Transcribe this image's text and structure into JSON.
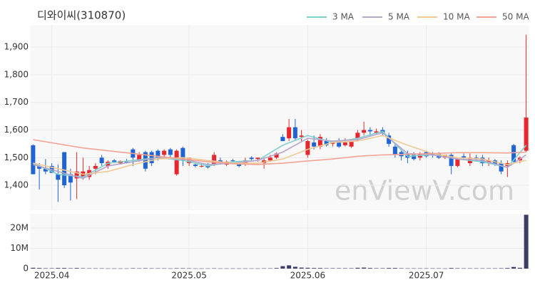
{
  "chart_data": {
    "type": "candlestick",
    "title": "디와이씨(310870)",
    "watermark": "enViewV.com",
    "up_color": "#e8262d",
    "down_color": "#1f63d6",
    "volume_color": "#3c3c66",
    "xlim": [
      -0.5,
      79.5
    ],
    "xticks": [
      {
        "value": 3,
        "label": "2025.04"
      },
      {
        "value": 25,
        "label": "2025.05"
      },
      {
        "value": 44,
        "label": "2025.06"
      },
      {
        "value": 63,
        "label": "2025.07"
      }
    ],
    "ylim": [
      1310,
      1980
    ],
    "yticks": [
      {
        "value": 1400,
        "label": "1,400"
      },
      {
        "value": 1500,
        "label": "1,500"
      },
      {
        "value": 1600,
        "label": "1,600"
      },
      {
        "value": 1700,
        "label": "1,700"
      },
      {
        "value": 1800,
        "label": "1,800"
      },
      {
        "value": 1900,
        "label": "1,900"
      }
    ],
    "volume_ylim": [
      0,
      27000000
    ],
    "volume_yticks": [
      0,
      {
        "value": 10000000,
        "label": "10M"
      },
      {
        "value": 20000000,
        "label": "20M"
      }
    ],
    "grid": true,
    "open": [
      1545,
      1470,
      1460,
      1470,
      1440,
      1520,
      1440,
      1425,
      1430,
      1430,
      1460,
      1500,
      1470,
      1490,
      1480,
      1485,
      1530,
      1490,
      1520,
      1520,
      1525,
      1510,
      1530,
      1440,
      1535,
      1480,
      1475,
      1470,
      1470,
      1475,
      1490,
      1475,
      1490,
      1475,
      1480,
      1500,
      1495,
      1480,
      1490,
      1500,
      1575,
      1570,
      1610,
      1575,
      1510,
      1555,
      1540,
      1560,
      1550,
      1560,
      1545,
      1540,
      1570,
      1590,
      1600,
      1590,
      1600,
      1580,
      1540,
      1520,
      1515,
      1510,
      1500,
      1520,
      1515,
      1515,
      1500,
      1510,
      1470,
      1505,
      1480,
      1500,
      1500,
      1480,
      1490,
      1480,
      1470,
      1545,
      1490,
      1525
    ],
    "high": [
      1548,
      1480,
      1495,
      1480,
      1475,
      1520,
      1460,
      1520,
      1500,
      1470,
      1480,
      1510,
      1490,
      1495,
      1490,
      1495,
      1535,
      1520,
      1525,
      1525,
      1530,
      1530,
      1535,
      1530,
      1540,
      1500,
      1480,
      1480,
      1480,
      1520,
      1500,
      1490,
      1495,
      1485,
      1500,
      1505,
      1500,
      1500,
      1510,
      1520,
      1585,
      1640,
      1640,
      1600,
      1565,
      1580,
      1585,
      1570,
      1560,
      1570,
      1570,
      1560,
      1600,
      1630,
      1610,
      1605,
      1610,
      1590,
      1550,
      1530,
      1525,
      1520,
      1520,
      1525,
      1520,
      1520,
      1510,
      1515,
      1500,
      1515,
      1515,
      1510,
      1510,
      1500,
      1495,
      1490,
      1490,
      1550,
      1505,
      1945
    ],
    "low": [
      1440,
      1385,
      1440,
      1445,
      1340,
      1390,
      1345,
      1350,
      1420,
      1420,
      1440,
      1470,
      1460,
      1480,
      1475,
      1480,
      1470,
      1485,
      1450,
      1470,
      1490,
      1500,
      1500,
      1435,
      1470,
      1470,
      1465,
      1465,
      1460,
      1470,
      1475,
      1470,
      1480,
      1465,
      1470,
      1490,
      1485,
      1460,
      1485,
      1495,
      1560,
      1560,
      1560,
      1560,
      1500,
      1530,
      1530,
      1540,
      1540,
      1535,
      1540,
      1535,
      1560,
      1580,
      1580,
      1585,
      1580,
      1540,
      1500,
      1490,
      1480,
      1490,
      1490,
      1500,
      1500,
      1495,
      1495,
      1440,
      1465,
      1495,
      1470,
      1490,
      1470,
      1470,
      1470,
      1440,
      1430,
      1480,
      1480,
      1520
    ],
    "close": [
      1440,
      1460,
      1450,
      1445,
      1420,
      1400,
      1410,
      1450,
      1450,
      1455,
      1470,
      1480,
      1485,
      1485,
      1488,
      1480,
      1500,
      1510,
      1460,
      1480,
      1500,
      1525,
      1510,
      1525,
      1490,
      1500,
      1470,
      1470,
      1465,
      1510,
      1480,
      1485,
      1488,
      1470,
      1490,
      1495,
      1500,
      1490,
      1500,
      1515,
      1560,
      1610,
      1570,
      1580,
      1560,
      1540,
      1575,
      1545,
      1555,
      1540,
      1555,
      1560,
      1590,
      1600,
      1595,
      1595,
      1590,
      1550,
      1510,
      1505,
      1500,
      1495,
      1515,
      1505,
      1510,
      1500,
      1510,
      1470,
      1495,
      1500,
      1500,
      1495,
      1480,
      1490,
      1475,
      1450,
      1480,
      1485,
      1500,
      1645
    ],
    "volume": [
      400000,
      300000,
      200000,
      200000,
      300000,
      300000,
      200000,
      300000,
      200000,
      150000,
      150000,
      150000,
      100000,
      100000,
      100000,
      100000,
      200000,
      150000,
      200000,
      150000,
      150000,
      150000,
      100000,
      200000,
      200000,
      150000,
      100000,
      100000,
      100000,
      150000,
      100000,
      100000,
      100000,
      100000,
      100000,
      100000,
      100000,
      150000,
      150000,
      300000,
      1200000,
      1600000,
      900000,
      500000,
      400000,
      300000,
      300000,
      200000,
      200000,
      200000,
      200000,
      200000,
      400000,
      500000,
      300000,
      200000,
      200000,
      300000,
      300000,
      200000,
      150000,
      150000,
      150000,
      150000,
      150000,
      150000,
      100000,
      300000,
      200000,
      150000,
      150000,
      150000,
      150000,
      150000,
      150000,
      200000,
      300000,
      800000,
      400000,
      26500000
    ],
    "ma_x": [
      0,
      4,
      8,
      12,
      16,
      20,
      24,
      28,
      32,
      36,
      40,
      44,
      48,
      52,
      56,
      60,
      64,
      68,
      72,
      76,
      79
    ],
    "series": [
      {
        "name": "3 MA",
        "color": "#7fd0cf",
        "values": [
          1480,
          1440,
          1430,
          1480,
          1490,
          1500,
          1490,
          1470,
          1485,
          1490,
          1545,
          1580,
          1555,
          1570,
          1595,
          1505,
          1510,
          1495,
          1485,
          1465,
          1545
        ]
      },
      {
        "name": "5 MA",
        "color": "#b4a6cc",
        "values": [
          1475,
          1450,
          1425,
          1470,
          1485,
          1500,
          1495,
          1475,
          1480,
          1490,
          1520,
          1570,
          1560,
          1565,
          1590,
          1515,
          1510,
          1495,
          1490,
          1465,
          1510
        ]
      },
      {
        "name": "10 MA",
        "color": "#f2c994",
        "values": [
          1480,
          1460,
          1440,
          1450,
          1475,
          1495,
          1500,
          1490,
          1480,
          1480,
          1495,
          1530,
          1555,
          1560,
          1580,
          1545,
          1515,
          1500,
          1495,
          1475,
          1490
        ]
      },
      {
        "name": "50 MA",
        "color": "#f4a393",
        "values": [
          1565,
          1550,
          1535,
          1525,
          1515,
          1505,
          1495,
          1485,
          1478,
          1475,
          1480,
          1488,
          1495,
          1505,
          1510,
          1512,
          1515,
          1518,
          1518,
          1517,
          1520
        ]
      }
    ]
  }
}
